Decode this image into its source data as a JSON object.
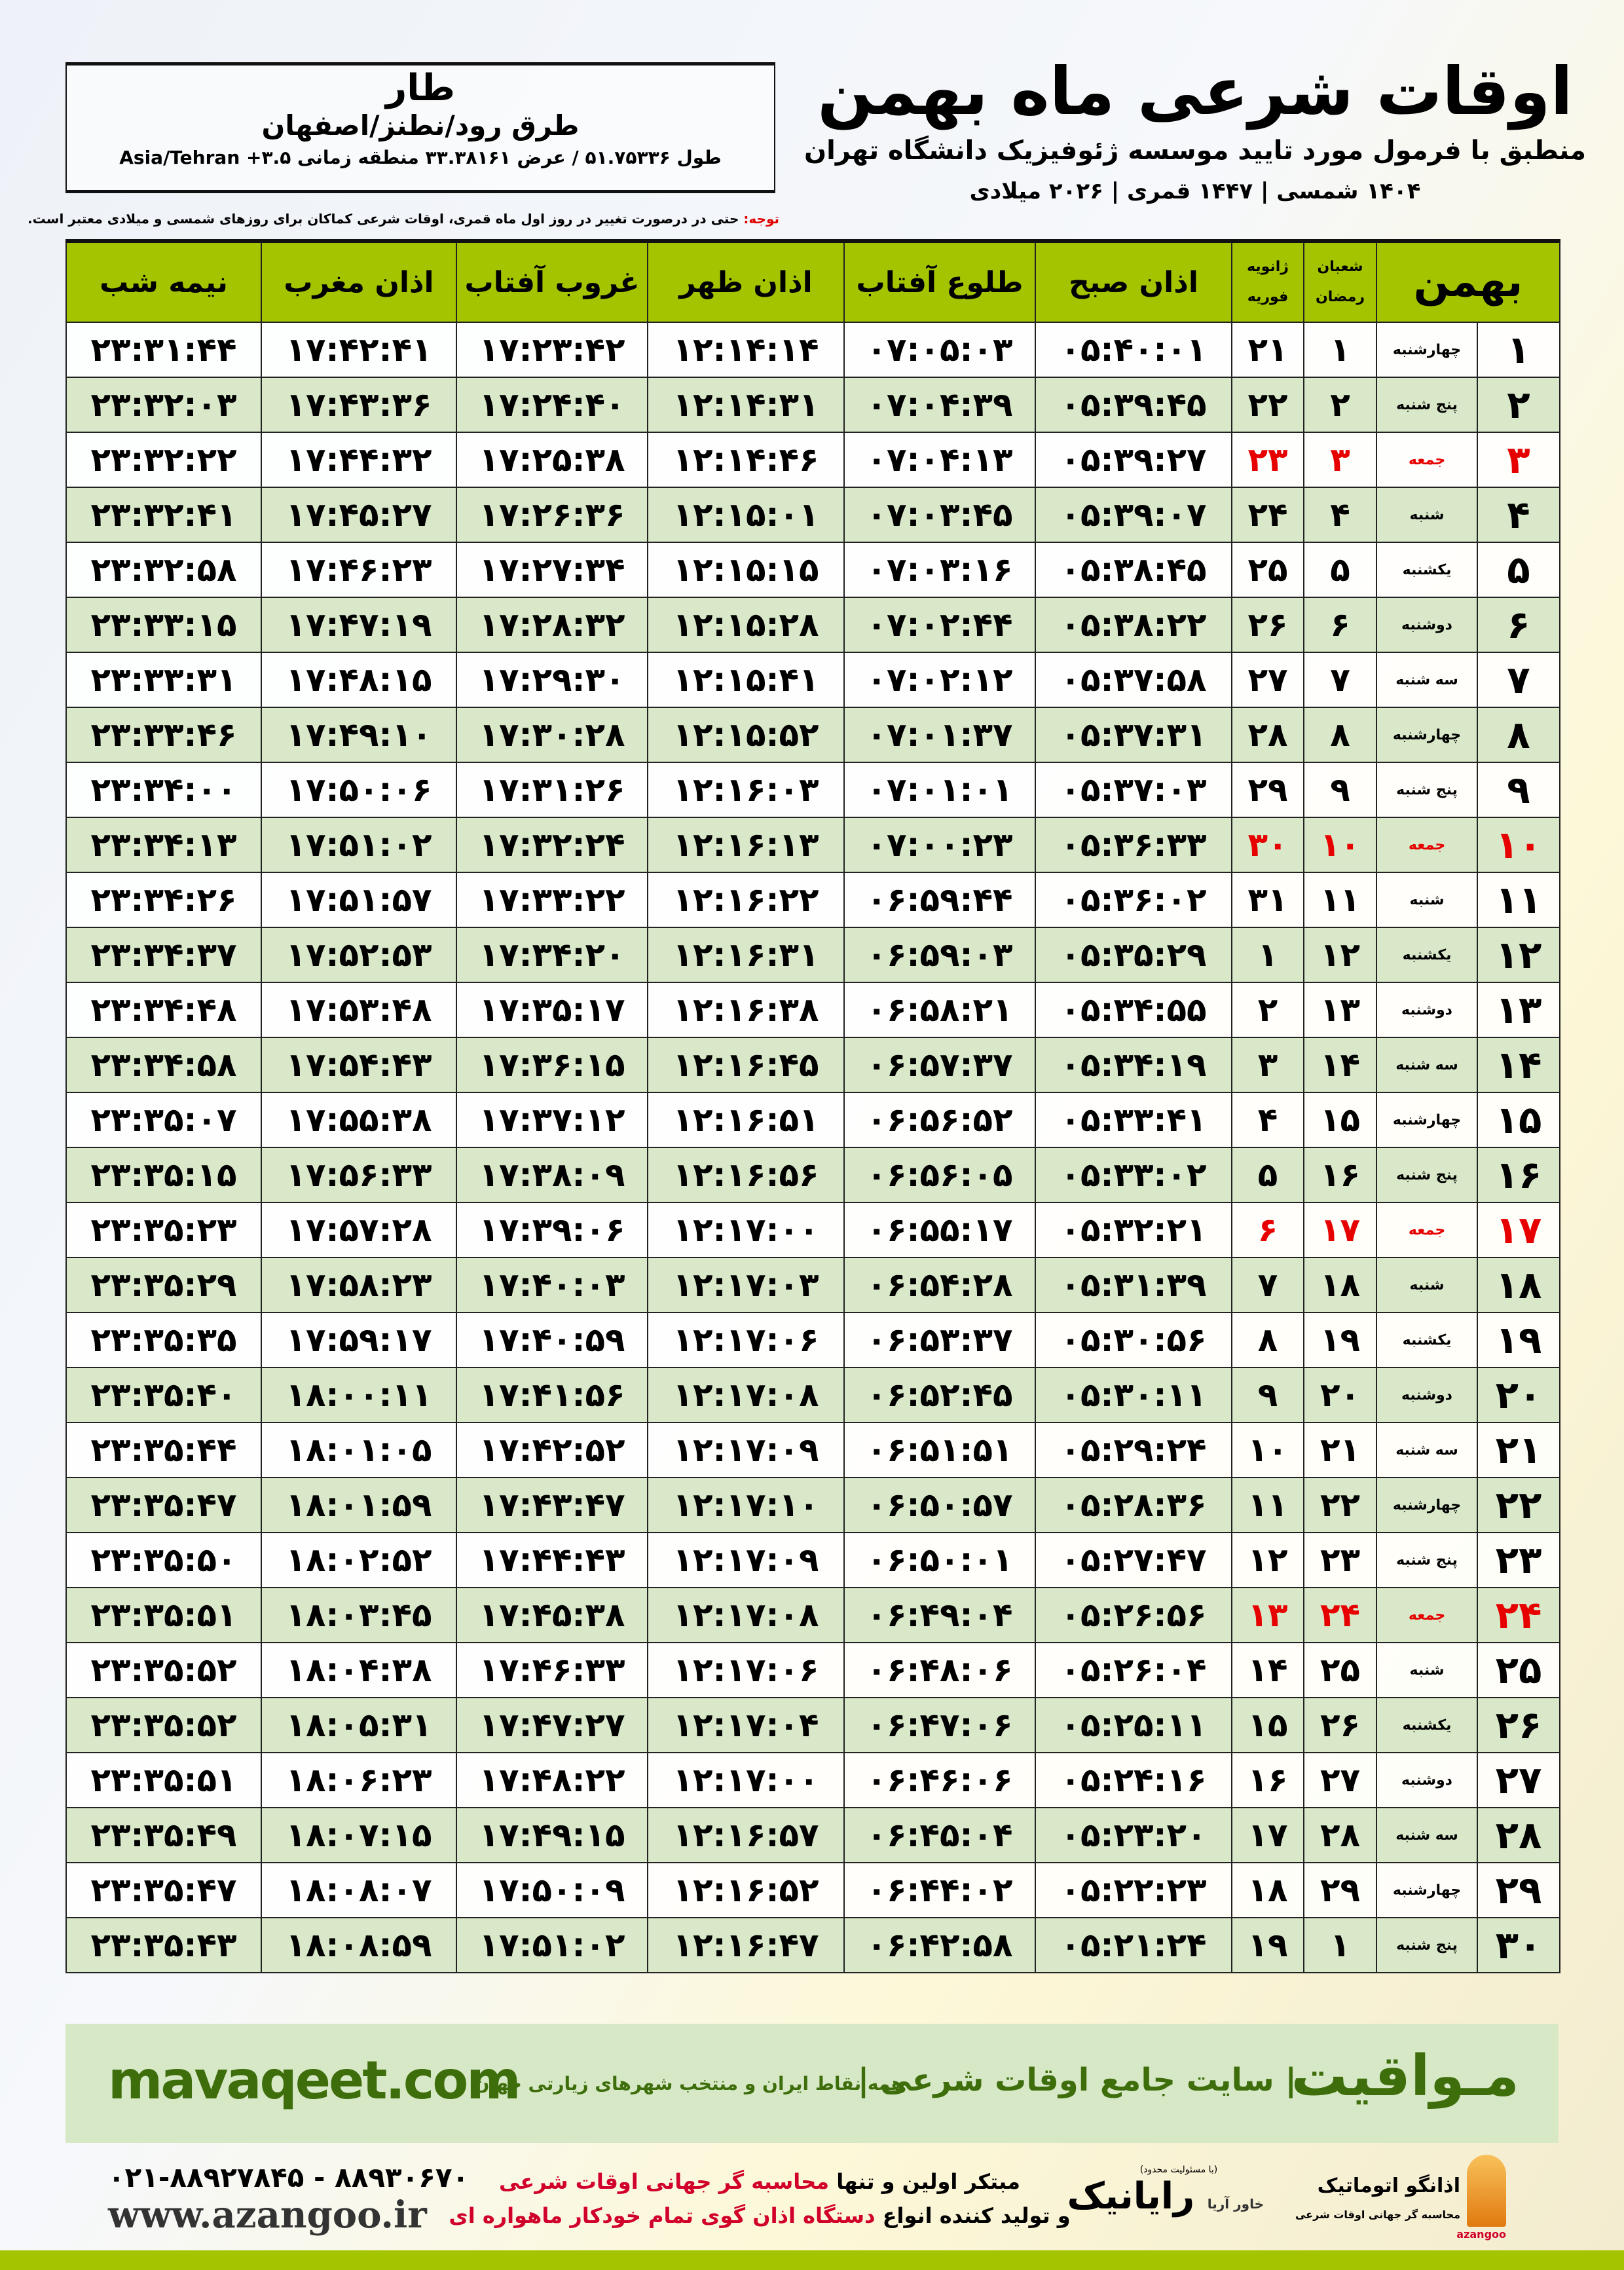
{
  "location": {
    "city": "طار",
    "road": "طرق رود/نطنز/اصفهان",
    "coords": "طول ۵۱.۷۵۳۳۶ / عرض ۳۳.۳۸۱۶۱ منطقه زمانی ۳.۵+ Asia/Tehran"
  },
  "header": {
    "title": "اوقات شرعی ماه بهمن",
    "subtitle": "منطبق با فرمول مورد تایید موسسه ژئوفیزیک دانشگاه تهران",
    "years": "۱۴۰۴ شمسی | ۱۴۴۷ قمری | ۲۰۲۶ میلادی"
  },
  "note": {
    "label": "توجه:",
    "text": " حتی در درصورت تغییر در روز اول ماه قمری، اوقات شرعی کماکان برای روزهای شمسی و میلادی معتبر است."
  },
  "table": {
    "headers": {
      "month": "بهمن",
      "hijri_top": "شعبان",
      "hijri_bottom": "رمضان",
      "greg_top": "ژانویه",
      "greg_bottom": "فوریه",
      "fajr": "اذان صبح",
      "sunrise": "طلوع آفتاب",
      "dhuhr": "اذان ظهر",
      "sunset": "غروب آفتاب",
      "maghrib": "اذان مغرب",
      "midnight": "نیمه شب"
    },
    "friday_color": "#e60000",
    "rows": [
      {
        "day": "۱",
        "weekday": "چهارشنبه",
        "hijri": "۱",
        "greg": "۲۱",
        "fajr": "۰۵:۴۰:۰۱",
        "sunrise": "۰۷:۰۵:۰۳",
        "dhuhr": "۱۲:۱۴:۱۴",
        "sunset": "۱۷:۲۳:۴۲",
        "maghrib": "۱۷:۴۲:۴۱",
        "midnight": "۲۳:۳۱:۴۴",
        "friday": false
      },
      {
        "day": "۲",
        "weekday": "پنج شنبه",
        "hijri": "۲",
        "greg": "۲۲",
        "fajr": "۰۵:۳۹:۴۵",
        "sunrise": "۰۷:۰۴:۳۹",
        "dhuhr": "۱۲:۱۴:۳۱",
        "sunset": "۱۷:۲۴:۴۰",
        "maghrib": "۱۷:۴۳:۳۶",
        "midnight": "۲۳:۳۲:۰۳",
        "friday": false
      },
      {
        "day": "۳",
        "weekday": "جمعه",
        "hijri": "۳",
        "greg": "۲۳",
        "fajr": "۰۵:۳۹:۲۷",
        "sunrise": "۰۷:۰۴:۱۳",
        "dhuhr": "۱۲:۱۴:۴۶",
        "sunset": "۱۷:۲۵:۳۸",
        "maghrib": "۱۷:۴۴:۳۲",
        "midnight": "۲۳:۳۲:۲۲",
        "friday": true
      },
      {
        "day": "۴",
        "weekday": "شنبه",
        "hijri": "۴",
        "greg": "۲۴",
        "fajr": "۰۵:۳۹:۰۷",
        "sunrise": "۰۷:۰۳:۴۵",
        "dhuhr": "۱۲:۱۵:۰۱",
        "sunset": "۱۷:۲۶:۳۶",
        "maghrib": "۱۷:۴۵:۲۷",
        "midnight": "۲۳:۳۲:۴۱",
        "friday": false
      },
      {
        "day": "۵",
        "weekday": "یکشنبه",
        "hijri": "۵",
        "greg": "۲۵",
        "fajr": "۰۵:۳۸:۴۵",
        "sunrise": "۰۷:۰۳:۱۶",
        "dhuhr": "۱۲:۱۵:۱۵",
        "sunset": "۱۷:۲۷:۳۴",
        "maghrib": "۱۷:۴۶:۲۳",
        "midnight": "۲۳:۳۲:۵۸",
        "friday": false
      },
      {
        "day": "۶",
        "weekday": "دوشنبه",
        "hijri": "۶",
        "greg": "۲۶",
        "fajr": "۰۵:۳۸:۲۲",
        "sunrise": "۰۷:۰۲:۴۴",
        "dhuhr": "۱۲:۱۵:۲۸",
        "sunset": "۱۷:۲۸:۳۲",
        "maghrib": "۱۷:۴۷:۱۹",
        "midnight": "۲۳:۳۳:۱۵",
        "friday": false
      },
      {
        "day": "۷",
        "weekday": "سه شنبه",
        "hijri": "۷",
        "greg": "۲۷",
        "fajr": "۰۵:۳۷:۵۸",
        "sunrise": "۰۷:۰۲:۱۲",
        "dhuhr": "۱۲:۱۵:۴۱",
        "sunset": "۱۷:۲۹:۳۰",
        "maghrib": "۱۷:۴۸:۱۵",
        "midnight": "۲۳:۳۳:۳۱",
        "friday": false
      },
      {
        "day": "۸",
        "weekday": "چهارشنبه",
        "hijri": "۸",
        "greg": "۲۸",
        "fajr": "۰۵:۳۷:۳۱",
        "sunrise": "۰۷:۰۱:۳۷",
        "dhuhr": "۱۲:۱۵:۵۲",
        "sunset": "۱۷:۳۰:۲۸",
        "maghrib": "۱۷:۴۹:۱۰",
        "midnight": "۲۳:۳۳:۴۶",
        "friday": false
      },
      {
        "day": "۹",
        "weekday": "پنج شنبه",
        "hijri": "۹",
        "greg": "۲۹",
        "fajr": "۰۵:۳۷:۰۳",
        "sunrise": "۰۷:۰۱:۰۱",
        "dhuhr": "۱۲:۱۶:۰۳",
        "sunset": "۱۷:۳۱:۲۶",
        "maghrib": "۱۷:۵۰:۰۶",
        "midnight": "۲۳:۳۴:۰۰",
        "friday": false
      },
      {
        "day": "۱۰",
        "weekday": "جمعه",
        "hijri": "۱۰",
        "greg": "۳۰",
        "fajr": "۰۵:۳۶:۳۳",
        "sunrise": "۰۷:۰۰:۲۳",
        "dhuhr": "۱۲:۱۶:۱۳",
        "sunset": "۱۷:۳۲:۲۴",
        "maghrib": "۱۷:۵۱:۰۲",
        "midnight": "۲۳:۳۴:۱۳",
        "friday": true
      },
      {
        "day": "۱۱",
        "weekday": "شنبه",
        "hijri": "۱۱",
        "greg": "۳۱",
        "fajr": "۰۵:۳۶:۰۲",
        "sunrise": "۰۶:۵۹:۴۴",
        "dhuhr": "۱۲:۱۶:۲۲",
        "sunset": "۱۷:۳۳:۲۲",
        "maghrib": "۱۷:۵۱:۵۷",
        "midnight": "۲۳:۳۴:۲۶",
        "friday": false
      },
      {
        "day": "۱۲",
        "weekday": "یکشنبه",
        "hijri": "۱۲",
        "greg": "۱",
        "fajr": "۰۵:۳۵:۲۹",
        "sunrise": "۰۶:۵۹:۰۳",
        "dhuhr": "۱۲:۱۶:۳۱",
        "sunset": "۱۷:۳۴:۲۰",
        "maghrib": "۱۷:۵۲:۵۳",
        "midnight": "۲۳:۳۴:۳۷",
        "friday": false
      },
      {
        "day": "۱۳",
        "weekday": "دوشنبه",
        "hijri": "۱۳",
        "greg": "۲",
        "fajr": "۰۵:۳۴:۵۵",
        "sunrise": "۰۶:۵۸:۲۱",
        "dhuhr": "۱۲:۱۶:۳۸",
        "sunset": "۱۷:۳۵:۱۷",
        "maghrib": "۱۷:۵۳:۴۸",
        "midnight": "۲۳:۳۴:۴۸",
        "friday": false
      },
      {
        "day": "۱۴",
        "weekday": "سه شنبه",
        "hijri": "۱۴",
        "greg": "۳",
        "fajr": "۰۵:۳۴:۱۹",
        "sunrise": "۰۶:۵۷:۳۷",
        "dhuhr": "۱۲:۱۶:۴۵",
        "sunset": "۱۷:۳۶:۱۵",
        "maghrib": "۱۷:۵۴:۴۳",
        "midnight": "۲۳:۳۴:۵۸",
        "friday": false
      },
      {
        "day": "۱۵",
        "weekday": "چهارشنبه",
        "hijri": "۱۵",
        "greg": "۴",
        "fajr": "۰۵:۳۳:۴۱",
        "sunrise": "۰۶:۵۶:۵۲",
        "dhuhr": "۱۲:۱۶:۵۱",
        "sunset": "۱۷:۳۷:۱۲",
        "maghrib": "۱۷:۵۵:۳۸",
        "midnight": "۲۳:۳۵:۰۷",
        "friday": false
      },
      {
        "day": "۱۶",
        "weekday": "پنج شنبه",
        "hijri": "۱۶",
        "greg": "۵",
        "fajr": "۰۵:۳۳:۰۲",
        "sunrise": "۰۶:۵۶:۰۵",
        "dhuhr": "۱۲:۱۶:۵۶",
        "sunset": "۱۷:۳۸:۰۹",
        "maghrib": "۱۷:۵۶:۳۳",
        "midnight": "۲۳:۳۵:۱۵",
        "friday": false
      },
      {
        "day": "۱۷",
        "weekday": "جمعه",
        "hijri": "۱۷",
        "greg": "۶",
        "fajr": "۰۵:۳۲:۲۱",
        "sunrise": "۰۶:۵۵:۱۷",
        "dhuhr": "۱۲:۱۷:۰۰",
        "sunset": "۱۷:۳۹:۰۶",
        "maghrib": "۱۷:۵۷:۲۸",
        "midnight": "۲۳:۳۵:۲۳",
        "friday": true
      },
      {
        "day": "۱۸",
        "weekday": "شنبه",
        "hijri": "۱۸",
        "greg": "۷",
        "fajr": "۰۵:۳۱:۳۹",
        "sunrise": "۰۶:۵۴:۲۸",
        "dhuhr": "۱۲:۱۷:۰۳",
        "sunset": "۱۷:۴۰:۰۳",
        "maghrib": "۱۷:۵۸:۲۳",
        "midnight": "۲۳:۳۵:۲۹",
        "friday": false
      },
      {
        "day": "۱۹",
        "weekday": "یکشنبه",
        "hijri": "۱۹",
        "greg": "۸",
        "fajr": "۰۵:۳۰:۵۶",
        "sunrise": "۰۶:۵۳:۳۷",
        "dhuhr": "۱۲:۱۷:۰۶",
        "sunset": "۱۷:۴۰:۵۹",
        "maghrib": "۱۷:۵۹:۱۷",
        "midnight": "۲۳:۳۵:۳۵",
        "friday": false
      },
      {
        "day": "۲۰",
        "weekday": "دوشنبه",
        "hijri": "۲۰",
        "greg": "۹",
        "fajr": "۰۵:۳۰:۱۱",
        "sunrise": "۰۶:۵۲:۴۵",
        "dhuhr": "۱۲:۱۷:۰۸",
        "sunset": "۱۷:۴۱:۵۶",
        "maghrib": "۱۸:۰۰:۱۱",
        "midnight": "۲۳:۳۵:۴۰",
        "friday": false
      },
      {
        "day": "۲۱",
        "weekday": "سه شنبه",
        "hijri": "۲۱",
        "greg": "۱۰",
        "fajr": "۰۵:۲۹:۲۴",
        "sunrise": "۰۶:۵۱:۵۱",
        "dhuhr": "۱۲:۱۷:۰۹",
        "sunset": "۱۷:۴۲:۵۲",
        "maghrib": "۱۸:۰۱:۰۵",
        "midnight": "۲۳:۳۵:۴۴",
        "friday": false
      },
      {
        "day": "۲۲",
        "weekday": "چهارشنبه",
        "hijri": "۲۲",
        "greg": "۱۱",
        "fajr": "۰۵:۲۸:۳۶",
        "sunrise": "۰۶:۵۰:۵۷",
        "dhuhr": "۱۲:۱۷:۱۰",
        "sunset": "۱۷:۴۳:۴۷",
        "maghrib": "۱۸:۰۱:۵۹",
        "midnight": "۲۳:۳۵:۴۷",
        "friday": false
      },
      {
        "day": "۲۳",
        "weekday": "پنج شنبه",
        "hijri": "۲۳",
        "greg": "۱۲",
        "fajr": "۰۵:۲۷:۴۷",
        "sunrise": "۰۶:۵۰:۰۱",
        "dhuhr": "۱۲:۱۷:۰۹",
        "sunset": "۱۷:۴۴:۴۳",
        "maghrib": "۱۸:۰۲:۵۲",
        "midnight": "۲۳:۳۵:۵۰",
        "friday": false
      },
      {
        "day": "۲۴",
        "weekday": "جمعه",
        "hijri": "۲۴",
        "greg": "۱۳",
        "fajr": "۰۵:۲۶:۵۶",
        "sunrise": "۰۶:۴۹:۰۴",
        "dhuhr": "۱۲:۱۷:۰۸",
        "sunset": "۱۷:۴۵:۳۸",
        "maghrib": "۱۸:۰۳:۴۵",
        "midnight": "۲۳:۳۵:۵۱",
        "friday": true
      },
      {
        "day": "۲۵",
        "weekday": "شنبه",
        "hijri": "۲۵",
        "greg": "۱۴",
        "fajr": "۰۵:۲۶:۰۴",
        "sunrise": "۰۶:۴۸:۰۶",
        "dhuhr": "۱۲:۱۷:۰۶",
        "sunset": "۱۷:۴۶:۳۳",
        "maghrib": "۱۸:۰۴:۳۸",
        "midnight": "۲۳:۳۵:۵۲",
        "friday": false
      },
      {
        "day": "۲۶",
        "weekday": "یکشنبه",
        "hijri": "۲۶",
        "greg": "۱۵",
        "fajr": "۰۵:۲۵:۱۱",
        "sunrise": "۰۶:۴۷:۰۶",
        "dhuhr": "۱۲:۱۷:۰۴",
        "sunset": "۱۷:۴۷:۲۷",
        "maghrib": "۱۸:۰۵:۳۱",
        "midnight": "۲۳:۳۵:۵۲",
        "friday": false
      },
      {
        "day": "۲۷",
        "weekday": "دوشنبه",
        "hijri": "۲۷",
        "greg": "۱۶",
        "fajr": "۰۵:۲۴:۱۶",
        "sunrise": "۰۶:۴۶:۰۶",
        "dhuhr": "۱۲:۱۷:۰۰",
        "sunset": "۱۷:۴۸:۲۲",
        "maghrib": "۱۸:۰۶:۲۳",
        "midnight": "۲۳:۳۵:۵۱",
        "friday": false
      },
      {
        "day": "۲۸",
        "weekday": "سه شنبه",
        "hijri": "۲۸",
        "greg": "۱۷",
        "fajr": "۰۵:۲۳:۲۰",
        "sunrise": "۰۶:۴۵:۰۴",
        "dhuhr": "۱۲:۱۶:۵۷",
        "sunset": "۱۷:۴۹:۱۵",
        "maghrib": "۱۸:۰۷:۱۵",
        "midnight": "۲۳:۳۵:۴۹",
        "friday": false
      },
      {
        "day": "۲۹",
        "weekday": "چهارشنبه",
        "hijri": "۲۹",
        "greg": "۱۸",
        "fajr": "۰۵:۲۲:۲۳",
        "sunrise": "۰۶:۴۴:۰۲",
        "dhuhr": "۱۲:۱۶:۵۲",
        "sunset": "۱۷:۵۰:۰۹",
        "maghrib": "۱۸:۰۸:۰۷",
        "midnight": "۲۳:۳۵:۴۷",
        "friday": false
      },
      {
        "day": "۳۰",
        "weekday": "پنج شنبه",
        "hijri": "۱",
        "greg": "۱۹",
        "fajr": "۰۵:۲۱:۲۴",
        "sunrise": "۰۶:۴۲:۵۸",
        "dhuhr": "۱۲:۱۶:۴۷",
        "sunset": "۱۷:۵۱:۰۲",
        "maghrib": "۱۸:۰۸:۵۹",
        "midnight": "۲۳:۳۵:۴۳",
        "friday": false
      }
    ]
  },
  "banner": {
    "brand": "مـواقیت",
    "slogan": "| سایت جامع اوقات شرعی |",
    "sub": "همه نقاط ایران و منتخب شهرهای زیارتی جهان",
    "site": "mavaqeet.com"
  },
  "footer": {
    "phone": "۰۲۱-۸۸۹۲۷۸۴۵ - ۸۸۹۳۰۶۷۰",
    "web": "www.azangoo.ir",
    "line1_a": "مبتکر اولین و تنها ",
    "line1_b": "محاسبه گر جهانی اوقات شرعی",
    "line2_a": "و تولید کننده انواع ",
    "line2_b": "دستگاه اذان گوی تمام خودکار ماهواره ای",
    "rayanik_small": "(با مسئولیت محدود)",
    "rayanik_pre": "خاور آریا",
    "rayanik_name": "رایانیک",
    "azangoo_name": "اذانگو اتوماتیک",
    "azangoo_tag": "محاسبه گر جهانی اوقات شرعی",
    "azangoo_en": "azangoo"
  },
  "colors": {
    "accent": "#a4c400",
    "row_alt": "#d9e8c9",
    "brand_green": "#3e6e0c",
    "red": "#d0002a"
  }
}
